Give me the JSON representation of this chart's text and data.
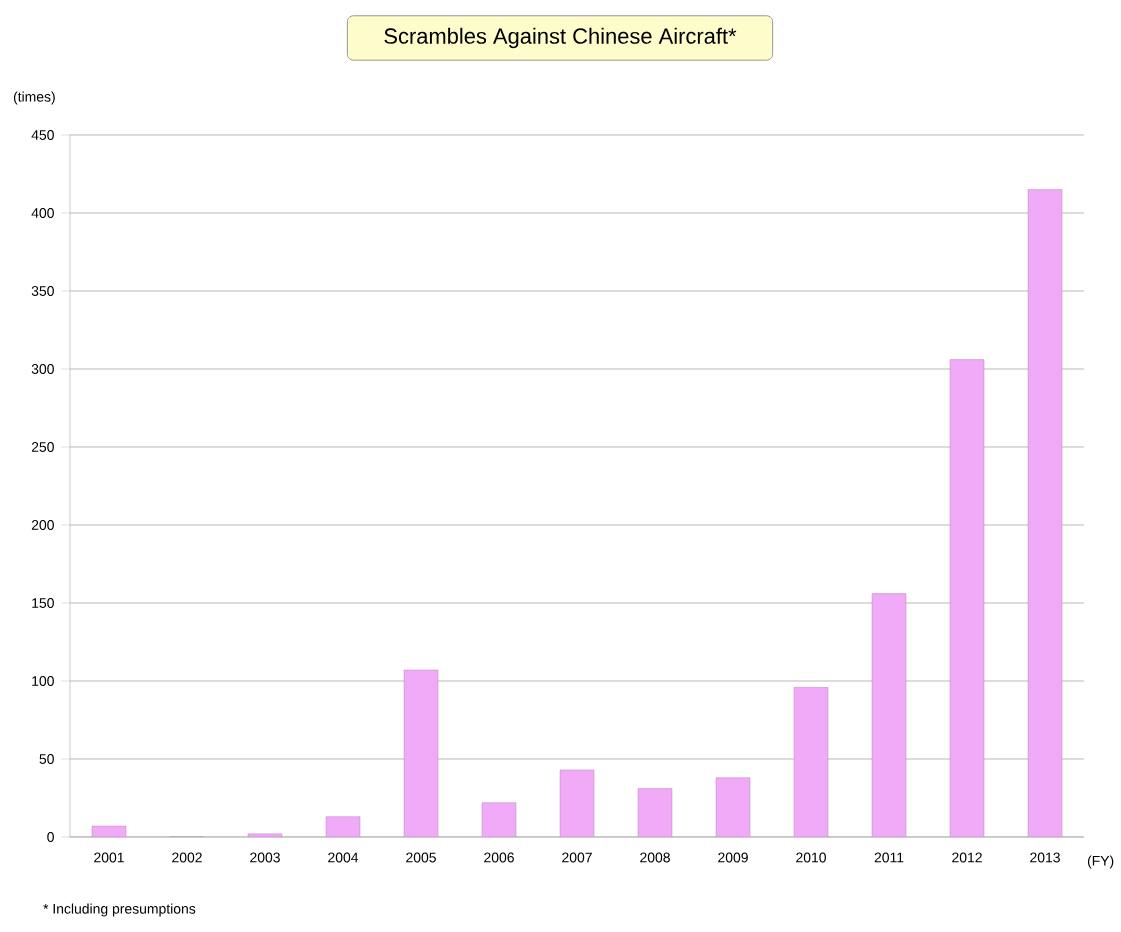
{
  "chart_data": {
    "type": "bar",
    "title": "Scrambles Against Chinese Aircraft*",
    "ylabel": "(times)",
    "xlabel": "(FY)",
    "categories": [
      "2001",
      "2002",
      "2003",
      "2004",
      "2005",
      "2006",
      "2007",
      "2008",
      "2009",
      "2010",
      "2011",
      "2012",
      "2013"
    ],
    "values": [
      7,
      0,
      2,
      13,
      107,
      22,
      43,
      31,
      38,
      96,
      156,
      306,
      415
    ],
    "color": "#f0aaf8",
    "ylim": [
      0,
      450
    ],
    "yticks": [
      0,
      50,
      100,
      150,
      200,
      250,
      300,
      350,
      400,
      450
    ],
    "grid": "y",
    "annotations": [
      "* Including presumptions"
    ]
  }
}
